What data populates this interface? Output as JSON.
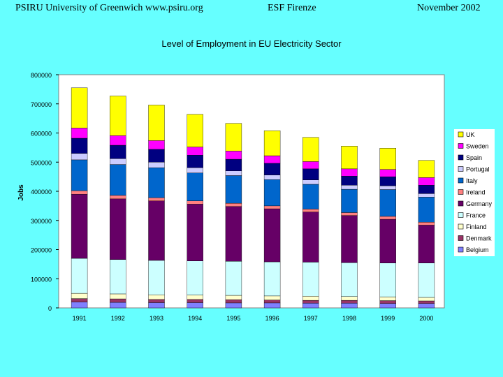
{
  "header": {
    "left": "PSIRU University of Greenwich   www.psiru.org",
    "center": "ESF Firenze",
    "right": "November  2002"
  },
  "chart_data": {
    "type": "bar",
    "stacked": true,
    "title": "Level of Employment in EU Electricity Sector",
    "xlabel": "",
    "ylabel": "Jobs",
    "ylim": [
      0,
      800000
    ],
    "yticks": [
      0,
      100000,
      200000,
      300000,
      400000,
      500000,
      600000,
      700000,
      800000
    ],
    "ytick_labels": [
      "0",
      "100000",
      "200000",
      "300000",
      "400000",
      "500000",
      "600000",
      "700000",
      "800000"
    ],
    "categories": [
      "1991",
      "1992",
      "1993",
      "1994",
      "1995",
      "1996",
      "1997",
      "1998",
      "1999",
      "2000"
    ],
    "legend_position": "right",
    "series": [
      {
        "name": "Belgium",
        "color": "#8080FF",
        "values": [
          20000,
          19000,
          18000,
          18000,
          17000,
          17000,
          16000,
          16000,
          15000,
          15000
        ]
      },
      {
        "name": "Denmark",
        "color": "#993366",
        "values": [
          12000,
          12000,
          11000,
          11000,
          11000,
          10000,
          10000,
          10000,
          10000,
          9000
        ]
      },
      {
        "name": "Finland",
        "color": "#FFFFCC",
        "values": [
          18000,
          17000,
          16000,
          15000,
          15000,
          14000,
          14000,
          13000,
          13000,
          12000
        ]
      },
      {
        "name": "France",
        "color": "#CCFFFF",
        "values": [
          120000,
          118000,
          118000,
          117000,
          117000,
          117000,
          117000,
          116000,
          116000,
          118000
        ]
      },
      {
        "name": "Germany",
        "color": "#660066",
        "values": [
          220000,
          208000,
          204000,
          195000,
          188000,
          182000,
          172000,
          162000,
          150000,
          130000
        ]
      },
      {
        "name": "Ireland",
        "color": "#FF8080",
        "values": [
          12000,
          12000,
          11000,
          11000,
          11000,
          10000,
          10000,
          10000,
          10000,
          10000
        ]
      },
      {
        "name": "Italy",
        "color": "#0066CC",
        "values": [
          106000,
          106000,
          103000,
          96000,
          95000,
          90000,
          85000,
          80000,
          92000,
          86000
        ]
      },
      {
        "name": "Portugal",
        "color": "#CCCCFF",
        "values": [
          22000,
          20000,
          19000,
          18000,
          16000,
          16000,
          15000,
          14000,
          13000,
          12000
        ]
      },
      {
        "name": "Spain",
        "color": "#000080",
        "values": [
          52000,
          46000,
          44000,
          43000,
          40000,
          40000,
          38000,
          31000,
          31000,
          29000
        ]
      },
      {
        "name": "Sweden",
        "color": "#FF00FF",
        "values": [
          35000,
          33000,
          30000,
          28000,
          28000,
          26000,
          25000,
          25000,
          25000,
          26000
        ]
      },
      {
        "name": "UK",
        "color": "#FFFF00",
        "values": [
          138000,
          136000,
          122000,
          112000,
          95000,
          86000,
          83000,
          78000,
          73000,
          59000
        ]
      }
    ]
  }
}
